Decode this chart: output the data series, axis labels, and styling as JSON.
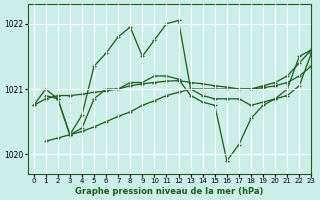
{
  "title": "Graphe pression niveau de la mer (hPa)",
  "bg_color": "#cceee8",
  "grid_color": "#ffffff",
  "line_color": "#1a5c1a",
  "xlim": [
    -0.5,
    23
  ],
  "ylim": [
    1019.7,
    1022.3
  ],
  "yticks": [
    1020,
    1021,
    1022
  ],
  "xticks": [
    0,
    1,
    2,
    3,
    4,
    5,
    6,
    7,
    8,
    9,
    10,
    11,
    12,
    13,
    14,
    15,
    16,
    17,
    18,
    19,
    20,
    21,
    22,
    23
  ],
  "series": [
    {
      "x": [
        0,
        1,
        2,
        3,
        4,
        5,
        6,
        7,
        8,
        9,
        10,
        11,
        12,
        13,
        14,
        15,
        16,
        17,
        18,
        19,
        20,
        21,
        22,
        23
      ],
      "y": [
        1020.75,
        1020.85,
        1020.9,
        1020.9,
        1020.92,
        1020.95,
        1020.97,
        1021.0,
        1021.05,
        1021.08,
        1021.1,
        1021.12,
        1021.13,
        1021.1,
        1021.08,
        1021.05,
        1021.03,
        1021.0,
        1021.0,
        1021.02,
        1021.05,
        1021.1,
        1021.2,
        1021.35
      ]
    },
    {
      "x": [
        0,
        1,
        2,
        3,
        4,
        5,
        6,
        7,
        8,
        9,
        10,
        11,
        12,
        13,
        14,
        15,
        16,
        17,
        18,
        19,
        20,
        21,
        22,
        23
      ],
      "y": [
        1020.75,
        1021.0,
        1020.85,
        1020.3,
        1020.6,
        1021.35,
        1021.55,
        1021.8,
        1021.95,
        1021.5,
        1021.75,
        1022.0,
        1022.05,
        1021.0,
        1020.9,
        1020.85,
        1020.85,
        1020.85,
        1020.75,
        1020.8,
        1020.85,
        1020.9,
        1021.05,
        1021.55
      ]
    },
    {
      "x": [
        1,
        2,
        3,
        4,
        5,
        6,
        7,
        8,
        9,
        10,
        11,
        12,
        13,
        14,
        15,
        16,
        17,
        18,
        19,
        20,
        21,
        22,
        23
      ],
      "y": [
        1020.2,
        1020.25,
        1020.3,
        1020.35,
        1020.42,
        1020.5,
        1020.58,
        1020.65,
        1020.75,
        1020.82,
        1020.9,
        1020.95,
        1021.0,
        1021.0,
        1021.0,
        1021.0,
        1021.0,
        1021.0,
        1021.05,
        1021.1,
        1021.2,
        1021.4,
        1021.6
      ]
    },
    {
      "x": [
        1,
        2,
        3,
        4,
        5,
        6,
        7,
        8,
        9,
        10,
        11,
        12,
        13,
        14,
        15,
        16,
        17,
        18,
        19,
        20,
        21,
        22,
        23
      ],
      "y": [
        1020.9,
        1020.85,
        1020.3,
        1020.4,
        1020.85,
        1021.0,
        1021.0,
        1021.1,
        1021.1,
        1021.2,
        1021.2,
        1021.15,
        1020.9,
        1020.8,
        1020.75,
        1019.9,
        1020.15,
        1020.55,
        1020.75,
        1020.85,
        1021.0,
        1021.5,
        1021.6
      ]
    }
  ]
}
